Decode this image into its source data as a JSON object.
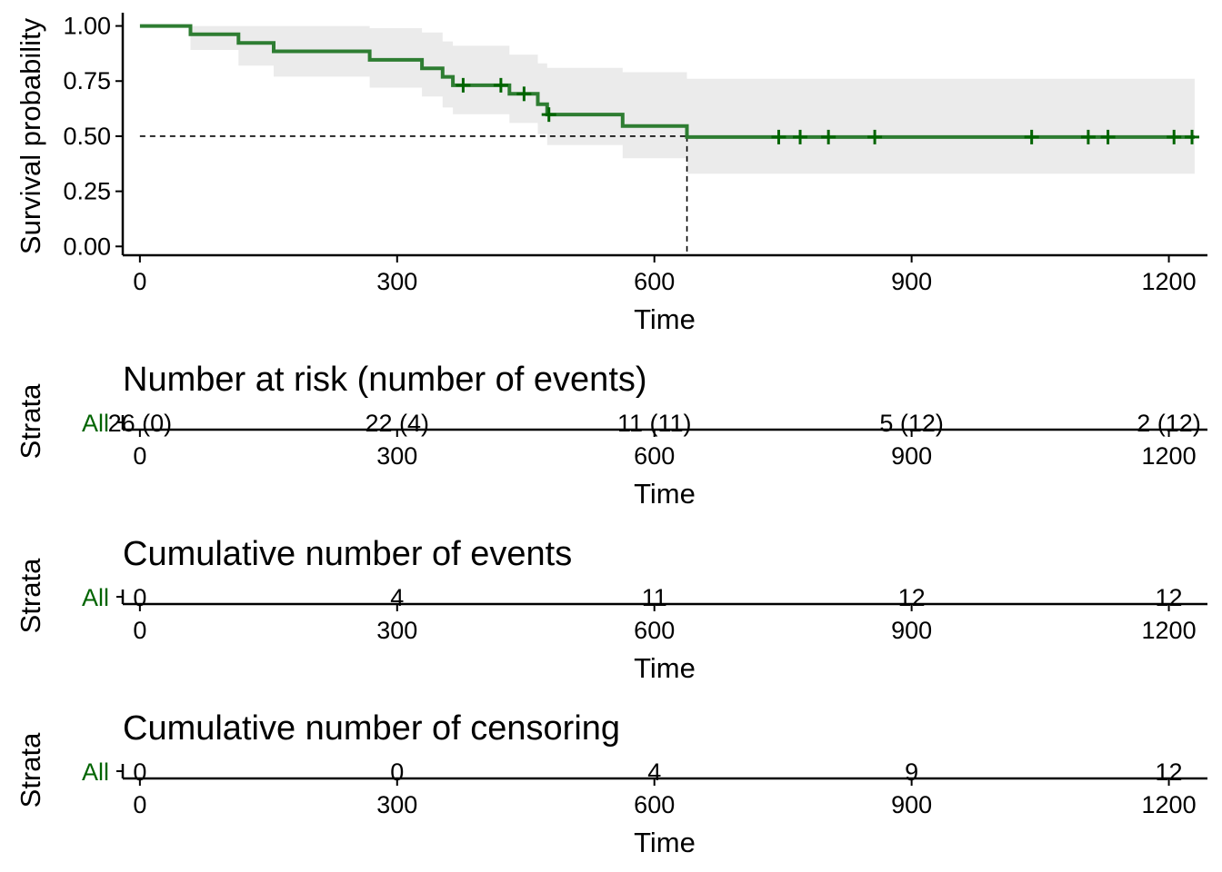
{
  "chart_data": [
    {
      "type": "line",
      "subtype": "kaplan-meier step",
      "xlabel": "Time",
      "ylabel": "Survival probability",
      "xlim": [
        -20,
        1245
      ],
      "ylim": [
        -0.04,
        1.06
      ],
      "x_ticks": [
        "0",
        "300",
        "600",
        "900",
        "1200"
      ],
      "y_ticks": [
        "0.00",
        "0.25",
        "0.50",
        "0.75",
        "1.00"
      ],
      "grid": false,
      "colors": {
        "curve": "#2e7d32",
        "censor": "#006400",
        "ci_band": "#ebebeb",
        "median_line": "#000000"
      },
      "steps": [
        [
          0,
          1.0
        ],
        [
          59,
          0.962
        ],
        [
          115,
          0.923
        ],
        [
          156,
          0.885
        ],
        [
          268,
          0.846
        ],
        [
          329,
          0.808
        ],
        [
          353,
          0.769
        ],
        [
          365,
          0.731
        ],
        [
          431,
          0.692
        ],
        [
          464,
          0.645
        ],
        [
          475,
          0.598
        ],
        [
          563,
          0.546
        ],
        [
          638,
          0.496
        ],
        [
          1230,
          0.496
        ]
      ],
      "ci_band": [
        [
          0,
          1.0,
          1.0
        ],
        [
          59,
          1.0,
          0.891
        ],
        [
          115,
          1.0,
          0.82
        ],
        [
          156,
          1.0,
          0.77
        ],
        [
          268,
          0.99,
          0.72
        ],
        [
          329,
          0.97,
          0.68
        ],
        [
          353,
          0.93,
          0.63
        ],
        [
          365,
          0.91,
          0.6
        ],
        [
          431,
          0.87,
          0.56
        ],
        [
          464,
          0.83,
          0.51
        ],
        [
          475,
          0.81,
          0.46
        ],
        [
          563,
          0.79,
          0.4
        ],
        [
          638,
          0.76,
          0.33
        ],
        [
          1230,
          0.76,
          0.33
        ]
      ],
      "censor_marks": [
        [
          377,
          0.731
        ],
        [
          421,
          0.731
        ],
        [
          448,
          0.692
        ],
        [
          477,
          0.598
        ],
        [
          745,
          0.496
        ],
        [
          770,
          0.496
        ],
        [
          803,
          0.496
        ],
        [
          857,
          0.496
        ],
        [
          1040,
          0.496
        ],
        [
          1106,
          0.496
        ],
        [
          1129,
          0.496
        ],
        [
          1206,
          0.496
        ],
        [
          1227,
          0.496
        ]
      ],
      "median": {
        "time": 638,
        "survival": 0.5
      }
    },
    {
      "type": "table",
      "title": "Number at risk (number of events)",
      "xlabel": "Time",
      "ylabel": "Strata",
      "strata": "All",
      "x_ticks": [
        "0",
        "300",
        "600",
        "900",
        "1200"
      ],
      "cells": [
        {
          "x": 0,
          "text": "26 (0)"
        },
        {
          "x": 300,
          "text": "22 (4)"
        },
        {
          "x": 600,
          "text": "11 (11)"
        },
        {
          "x": 900,
          "text": "5 (12)"
        },
        {
          "x": 1200,
          "text": "2 (12)"
        }
      ]
    },
    {
      "type": "table",
      "title": "Cumulative number of events",
      "xlabel": "Time",
      "ylabel": "Strata",
      "strata": "All",
      "x_ticks": [
        "0",
        "300",
        "600",
        "900",
        "1200"
      ],
      "cells": [
        {
          "x": 0,
          "text": "0"
        },
        {
          "x": 300,
          "text": "4"
        },
        {
          "x": 600,
          "text": "11"
        },
        {
          "x": 900,
          "text": "12"
        },
        {
          "x": 1200,
          "text": "12"
        }
      ]
    },
    {
      "type": "table",
      "title": "Cumulative number of censoring",
      "xlabel": "Time",
      "ylabel": "Strata",
      "strata": "All",
      "x_ticks": [
        "0",
        "300",
        "600",
        "900",
        "1200"
      ],
      "cells": [
        {
          "x": 0,
          "text": "0"
        },
        {
          "x": 300,
          "text": "0"
        },
        {
          "x": 600,
          "text": "4"
        },
        {
          "x": 900,
          "text": "9"
        },
        {
          "x": 1200,
          "text": "12"
        }
      ]
    }
  ]
}
